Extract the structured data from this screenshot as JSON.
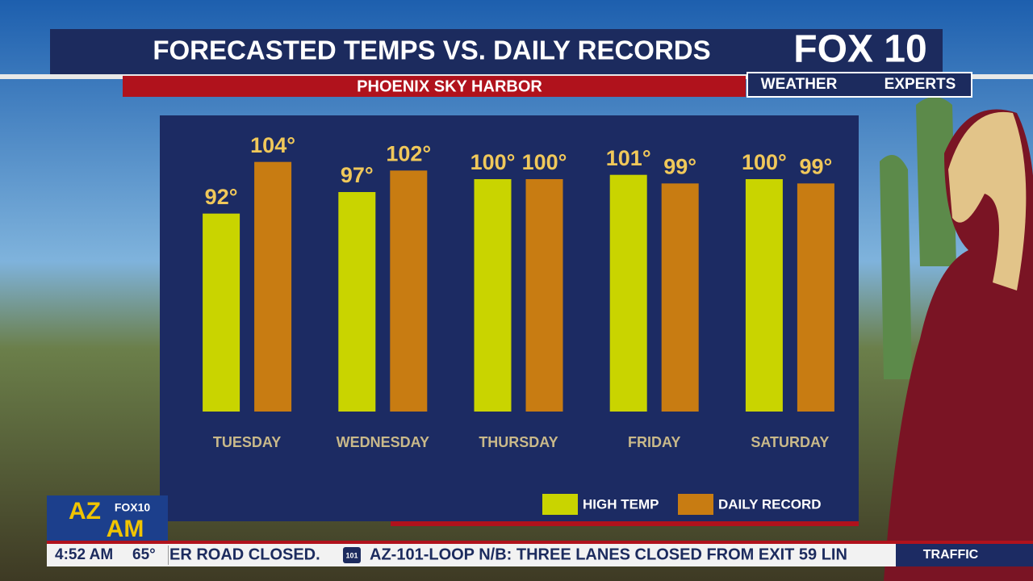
{
  "header": {
    "title": "FORECASTED TEMPS VS. DAILY RECORDS",
    "subtitle": "PHOENIX SKY HARBOR",
    "logo": "FOX 10",
    "logo_tag_left": "WEATHER",
    "logo_tag_right": "EXPERTS"
  },
  "chart_data": {
    "type": "bar",
    "categories": [
      "TUESDAY",
      "WEDNESDAY",
      "THURSDAY",
      "FRIDAY",
      "SATURDAY"
    ],
    "series": [
      {
        "name": "HIGH TEMP",
        "color": "#c9d400",
        "values": [
          92,
          97,
          100,
          101,
          100
        ],
        "value_labels": [
          "92°",
          "97°",
          "100°",
          "101°",
          "100°"
        ]
      },
      {
        "name": "DAILY RECORD",
        "color": "#c87c12",
        "values": [
          104,
          102,
          100,
          99,
          99
        ],
        "value_labels": [
          "104°",
          "102°",
          "100°",
          "99°",
          "99°"
        ]
      }
    ],
    "ylim": [
      46,
      106
    ],
    "legend": "bottom-right"
  },
  "show": {
    "logo_top": "AZ",
    "logo_bottom": "AM",
    "logo_brand": "FOX10"
  },
  "ticker": {
    "time": "4:52 AM",
    "temperature": "65°",
    "items": [
      "ER ROAD CLOSED.",
      "AZ-101-LOOP N/B: THREE LANES CLOSED FROM EXIT 59 LIN"
    ],
    "shield": "101",
    "section": "TRAFFIC"
  }
}
